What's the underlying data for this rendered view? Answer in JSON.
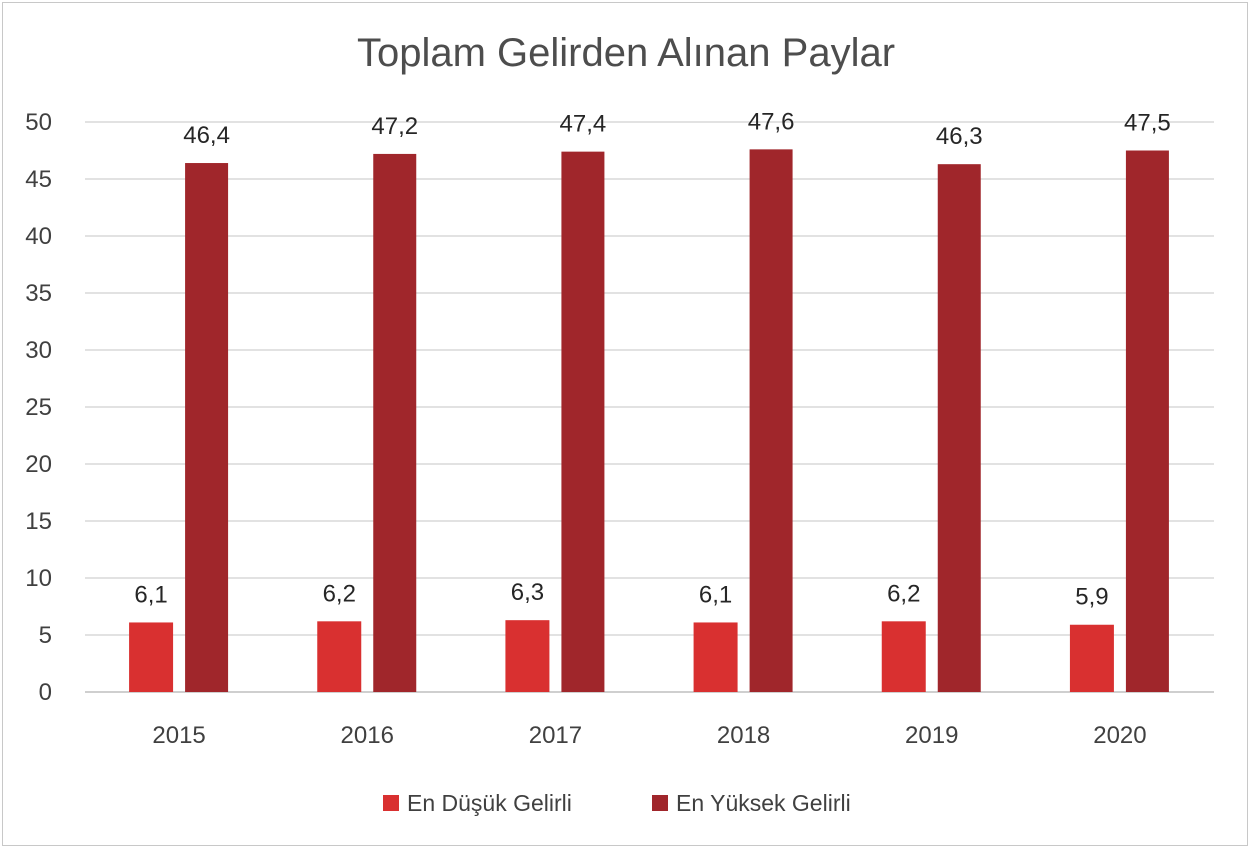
{
  "chart_data": {
    "type": "bar",
    "title": "Toplam Gelirden Alınan Paylar",
    "categories": [
      "2015",
      "2016",
      "2017",
      "2018",
      "2019",
      "2020"
    ],
    "series": [
      {
        "name": "En Düşük Gelirli",
        "color": "#d93030",
        "values": [
          6.1,
          6.2,
          6.3,
          6.1,
          6.2,
          5.9
        ],
        "labels": [
          "6,1",
          "6,2",
          "6,3",
          "6,1",
          "6,2",
          "5,9"
        ]
      },
      {
        "name": "En Yüksek Gelirli",
        "color": "#a0262b",
        "values": [
          46.4,
          47.2,
          47.4,
          47.6,
          46.3,
          47.5
        ],
        "labels": [
          "46,4",
          "47,2",
          "47,4",
          "47,6",
          "46,3",
          "47,5"
        ]
      }
    ],
    "ylim": [
      0,
      50
    ],
    "yticks": [
      0,
      5,
      10,
      15,
      20,
      25,
      30,
      35,
      40,
      45,
      50
    ],
    "grid": true,
    "legend_position": "bottom"
  }
}
